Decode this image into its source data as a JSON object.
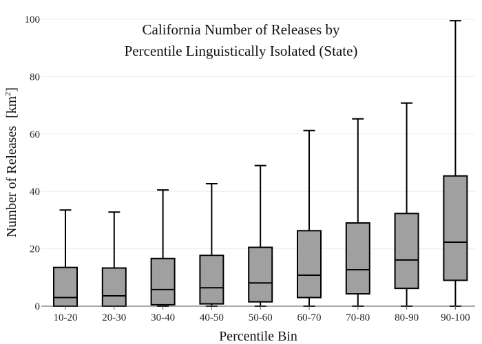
{
  "chart_data": {
    "type": "box",
    "title_lines": [
      "California Number of Releases by",
      "Percentile Linguistically Isolated (State)"
    ],
    "xlabel": "Percentile Bin",
    "ylabel": "Number of Releases",
    "ylabel_unit": "[km",
    "ylabel_unit_sup": "2",
    "ylabel_unit_close": "]",
    "ylim": [
      0,
      100
    ],
    "yticks": [
      0,
      20,
      40,
      60,
      80,
      100
    ],
    "grid": true,
    "categories": [
      "10-20",
      "20-30",
      "30-40",
      "40-50",
      "50-60",
      "60-70",
      "70-80",
      "80-90",
      "90-100"
    ],
    "boxes": [
      {
        "min": 0,
        "q1": 0,
        "median": 3.0,
        "q3": 13.5,
        "max": 33.5
      },
      {
        "min": 0,
        "q1": 0,
        "median": 3.6,
        "q3": 13.3,
        "max": 32.8
      },
      {
        "min": 0,
        "q1": 0.5,
        "median": 5.8,
        "q3": 16.6,
        "max": 40.5
      },
      {
        "min": 0,
        "q1": 0.8,
        "median": 6.4,
        "q3": 17.7,
        "max": 42.7
      },
      {
        "min": 0,
        "q1": 1.5,
        "median": 8.1,
        "q3": 20.5,
        "max": 49.0
      },
      {
        "min": 0,
        "q1": 3.0,
        "median": 10.8,
        "q3": 26.3,
        "max": 61.2
      },
      {
        "min": 0,
        "q1": 4.3,
        "median": 12.7,
        "q3": 29.0,
        "max": 65.3
      },
      {
        "min": 0,
        "q1": 6.2,
        "median": 16.1,
        "q3": 32.3,
        "max": 70.8
      },
      {
        "min": 0,
        "q1": 9.0,
        "median": 22.3,
        "q3": 45.4,
        "max": 99.5
      }
    ],
    "box_color": "#a0a0a0",
    "line_color": "#000000",
    "grid_color": "#ebebeb",
    "axis_color": "#555555"
  }
}
